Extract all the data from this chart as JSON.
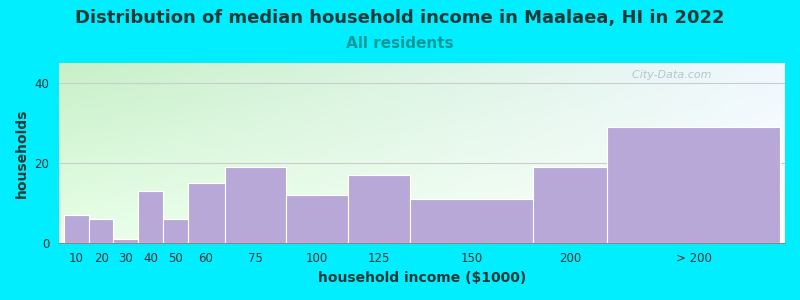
{
  "title": "Distribution of median household income in Maalaea, HI in 2022",
  "subtitle": "All residents",
  "xlabel": "household income ($1000)",
  "ylabel": "households",
  "bar_labels": [
    "10",
    "20",
    "30",
    "40",
    "50",
    "60",
    "75",
    "100",
    "125",
    "150",
    "200",
    "> 200"
  ],
  "bar_values": [
    7,
    6,
    1,
    13,
    6,
    15,
    19,
    12,
    17,
    11,
    19,
    29
  ],
  "bar_color": "#b8a8d8",
  "bg_color": "#00eeff",
  "plot_bg_topleft": "#c8f0c8",
  "plot_bg_right": "#f8f8ff",
  "ylim": [
    0,
    45
  ],
  "yticks": [
    0,
    20,
    40
  ],
  "title_fontsize": 13,
  "subtitle_fontsize": 11,
  "title_color": "#1a3a3a",
  "subtitle_color": "#009999",
  "axis_label_fontsize": 10,
  "watermark": "  City-Data.com",
  "positions": [
    10,
    20,
    30,
    40,
    50,
    60,
    75,
    100,
    125,
    150,
    200,
    230
  ],
  "widths": [
    10,
    10,
    10,
    10,
    10,
    15,
    25,
    25,
    25,
    50,
    30,
    70
  ]
}
